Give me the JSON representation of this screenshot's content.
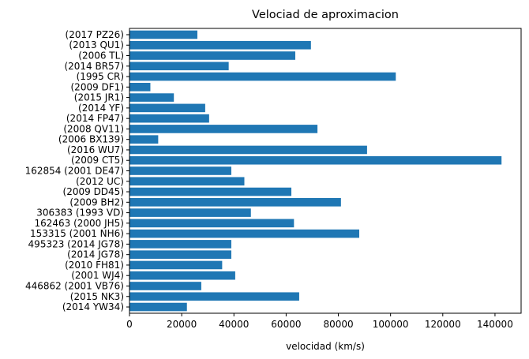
{
  "chart_data": {
    "type": "bar",
    "orientation": "horizontal",
    "title": "Velociad de aproximacion",
    "xlabel": "velocidad (km/s)",
    "ylabel": "",
    "xlim": [
      0,
      150000
    ],
    "xticks": [
      0,
      20000,
      40000,
      60000,
      80000,
      100000,
      120000,
      140000
    ],
    "bar_color": "#1f77b4",
    "grid": false,
    "categories": [
      "(2017 PZ26)",
      "(2013 QU1)",
      "(2006 TL)",
      "(2014 BR57)",
      "(1995 CR)",
      "(2009 DF1)",
      "(2015 JR1)",
      "(2014 YF)",
      "(2014 FP47)",
      "(2008 QV11)",
      "(2006 BX139)",
      "(2016 WU7)",
      "(2009 CT5)",
      "162854 (2001 DE47)",
      "(2012 UC)",
      "(2009 DD45)",
      "(2009 BH2)",
      "306383 (1993 VD)",
      "162463 (2000 JH5)",
      "153315 (2001 NH6)",
      "495323 (2014 JG78)",
      "(2014 JG78)",
      "(2010 FH81)",
      "(2001 WJ4)",
      "446862 (2001 VB76)",
      "(2015 NK3)",
      "(2014 YW34)"
    ],
    "values": [
      26000,
      69500,
      63500,
      38000,
      102000,
      8000,
      17000,
      29000,
      30500,
      72000,
      11000,
      91000,
      142500,
      39000,
      44000,
      62000,
      81000,
      46500,
      63000,
      88000,
      39000,
      39000,
      35500,
      40500,
      27500,
      65000,
      22000
    ]
  }
}
